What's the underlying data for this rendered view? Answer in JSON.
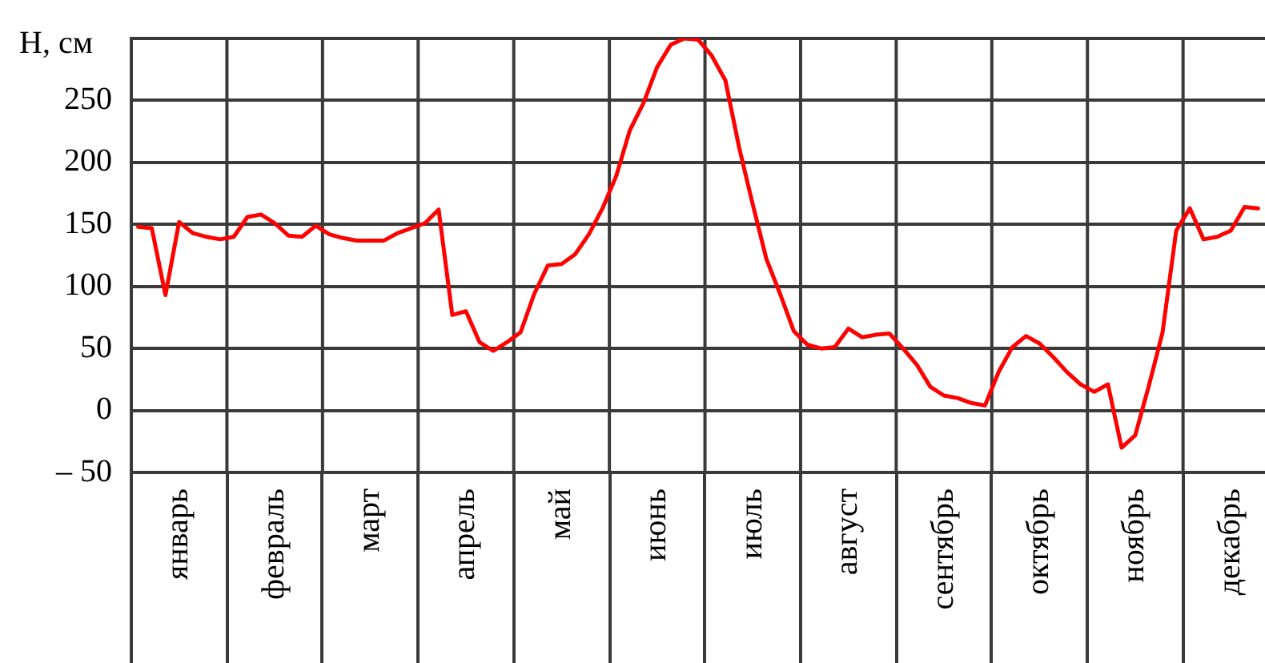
{
  "chart_data": {
    "type": "line",
    "ylabel": "H, см",
    "categories": [
      null,
      null,
      null,
      "январь",
      null,
      null,
      null,
      null,
      null,
      null,
      "февраль",
      null,
      null,
      null,
      null,
      null,
      null,
      "март",
      null,
      null,
      null,
      null,
      null,
      null,
      "апрель",
      null,
      null,
      null,
      null,
      null,
      null,
      "май",
      null,
      null,
      null,
      null,
      null,
      null,
      "июнь",
      null,
      null,
      null,
      null,
      null,
      null,
      "июль",
      null,
      null,
      null,
      null,
      null,
      null,
      "август",
      null,
      null,
      null,
      null,
      null,
      null,
      "сентябрь",
      null,
      null,
      null,
      null,
      null,
      null,
      "октябрь",
      null,
      null,
      null,
      null,
      null,
      null,
      "ноябрь",
      null,
      null,
      null,
      null,
      null,
      null,
      "декабрь",
      null,
      null
    ],
    "ylim": [
      -50,
      300
    ],
    "yticks": [
      {
        "value": -50,
        "label": "– 50"
      },
      0,
      50,
      100,
      150,
      200,
      250,
      {
        "value": 300,
        "label": null
      }
    ],
    "series": [
      {
        "color": "#ff0000",
        "values": [
          148,
          147,
          93,
          152,
          143,
          140,
          138,
          140,
          156,
          158,
          151,
          141,
          140,
          149,
          142,
          139,
          137,
          137,
          137,
          143,
          147,
          151,
          162,
          77,
          80,
          55,
          48,
          55,
          63,
          94,
          117,
          118,
          126,
          142,
          163,
          189,
          226,
          248,
          277,
          295,
          300,
          299,
          286,
          266,
          212,
          166,
          122,
          94,
          64,
          53,
          50,
          51,
          66,
          59,
          61,
          62,
          50,
          37,
          19,
          12,
          10,
          6,
          4,
          31,
          51,
          60,
          54,
          43,
          31,
          21,
          15,
          21,
          -30,
          -20,
          20,
          63,
          145,
          163,
          138,
          140,
          145,
          164,
          163
        ]
      }
    ],
    "grid": true,
    "legend": false,
    "marker": "none",
    "line_style": "solid"
  }
}
